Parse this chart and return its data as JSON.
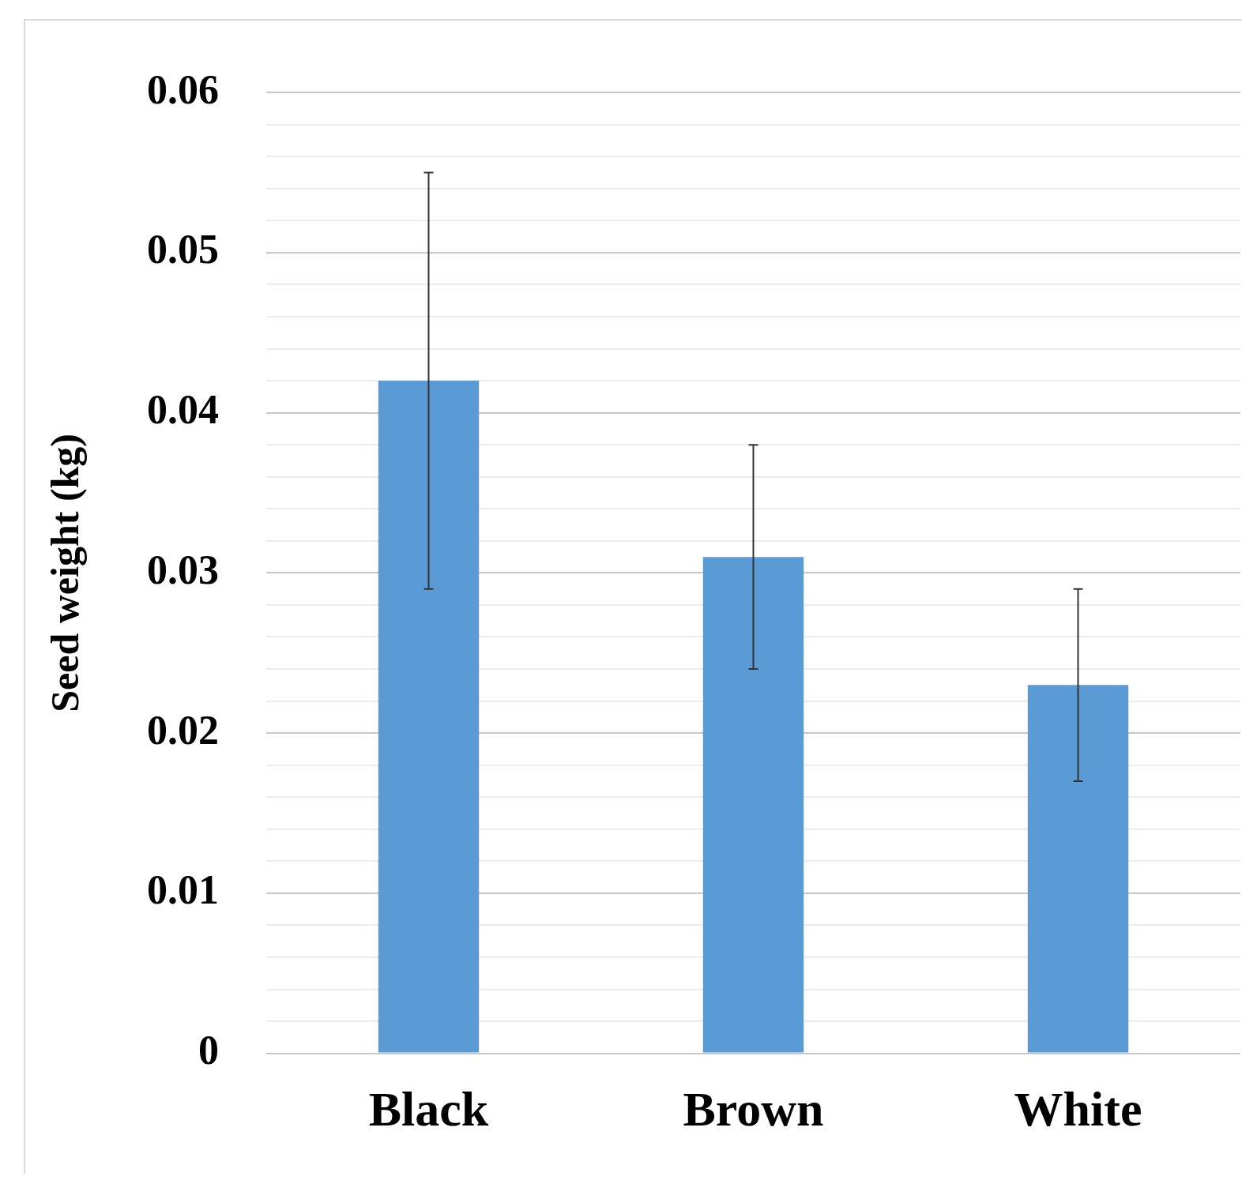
{
  "chart_data": {
    "type": "bar",
    "ylabel": "Seed weight (kg)",
    "categories": [
      "Black",
      "Brown",
      "White"
    ],
    "values": [
      0.042,
      0.031,
      0.023
    ],
    "color": "#5b9bd5",
    "errors": [
      [
        0.029,
        0.055
      ],
      [
        0.024,
        0.038
      ],
      [
        0.017,
        0.029
      ]
    ],
    "ylim": [
      0,
      0.06
    ],
    "yticks": [
      0,
      {
        "value": 0.002,
        "label": null
      },
      {
        "value": 0.004,
        "label": null
      },
      {
        "value": 0.006,
        "label": null
      },
      {
        "value": 0.008,
        "label": null
      },
      0.01,
      {
        "value": 0.012,
        "label": null
      },
      {
        "value": 0.014,
        "label": null
      },
      {
        "value": 0.016,
        "label": null
      },
      {
        "value": 0.018,
        "label": null
      },
      0.02,
      {
        "value": 0.022,
        "label": null
      },
      {
        "value": 0.024,
        "label": null
      },
      {
        "value": 0.026,
        "label": null
      },
      {
        "value": 0.028,
        "label": null
      },
      0.03,
      {
        "value": 0.032,
        "label": null
      },
      {
        "value": 0.034,
        "label": null
      },
      {
        "value": 0.036,
        "label": null
      },
      {
        "value": 0.038,
        "label": null
      },
      0.04,
      {
        "value": 0.042,
        "label": null
      },
      {
        "value": 0.044,
        "label": null
      },
      {
        "value": 0.046,
        "label": null
      },
      {
        "value": 0.048,
        "label": null
      },
      0.05,
      {
        "value": 0.052,
        "label": null
      },
      {
        "value": 0.054,
        "label": null
      },
      {
        "value": 0.056,
        "label": null
      },
      {
        "value": 0.058,
        "label": null
      },
      0.06
    ],
    "grid": "y",
    "legend": false
  }
}
